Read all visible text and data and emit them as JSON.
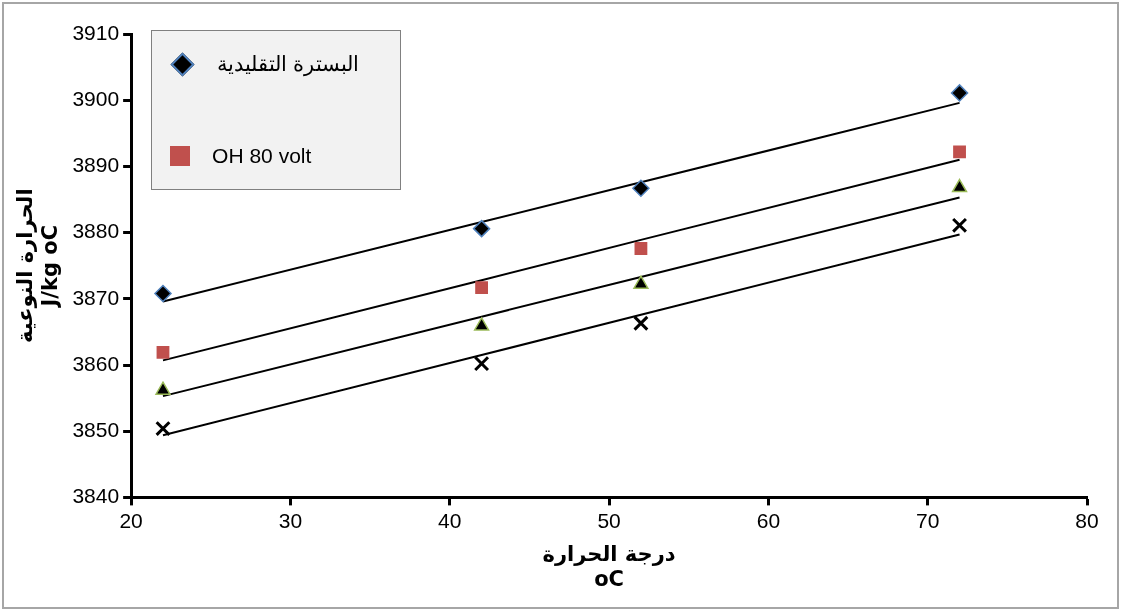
{
  "chart_data": {
    "type": "scatter",
    "xlabel": "درجة الحرارة\noC",
    "ylabel": "الحرارة النوعية\nJ/kg oC",
    "xlim": [
      20,
      80
    ],
    "xticks": [
      20,
      30,
      40,
      50,
      60,
      70,
      80
    ],
    "ylim": [
      3840,
      3910
    ],
    "yticks": [
      3840,
      3850,
      3860,
      3870,
      3880,
      3890,
      3900,
      3910
    ],
    "grid": false,
    "legend": "top left",
    "x": [
      22,
      42,
      52,
      72
    ],
    "series": [
      {
        "name": "البسترة التقليدية",
        "color": "#000000",
        "marker": "diamond",
        "values": [
          3870.8,
          3880.6,
          3886.7,
          3901.1
        ]
      },
      {
        "name": "OH 80 volt",
        "color": "#c0504d",
        "marker": "square",
        "values": [
          3861.9,
          3871.7,
          3877.6,
          3892.2
        ]
      },
      {
        "color": "#000000",
        "marker": "triangle",
        "values": [
          3856.2,
          3865.9,
          3872.2,
          3886.8
        ]
      },
      {
        "color": "#000000",
        "marker": "cross",
        "values": [
          3850.4,
          3860.2,
          3866.3,
          3881.1
        ]
      },
      {
        "type": "line",
        "color": "#000000",
        "marker": "none",
        "values": [
          3869.6,
          3881.6,
          3887.6,
          3899.6
        ]
      },
      {
        "type": "line",
        "color": "#000000",
        "marker": "none",
        "values": [
          3860.7,
          3872.8,
          3878.9,
          3891.0
        ]
      },
      {
        "type": "line",
        "color": "#000000",
        "marker": "none",
        "values": [
          3855.3,
          3867.3,
          3873.3,
          3885.3
        ]
      },
      {
        "type": "line",
        "color": "#000000",
        "marker": "none",
        "values": [
          3849.4,
          3861.5,
          3867.6,
          3879.7
        ]
      }
    ]
  }
}
